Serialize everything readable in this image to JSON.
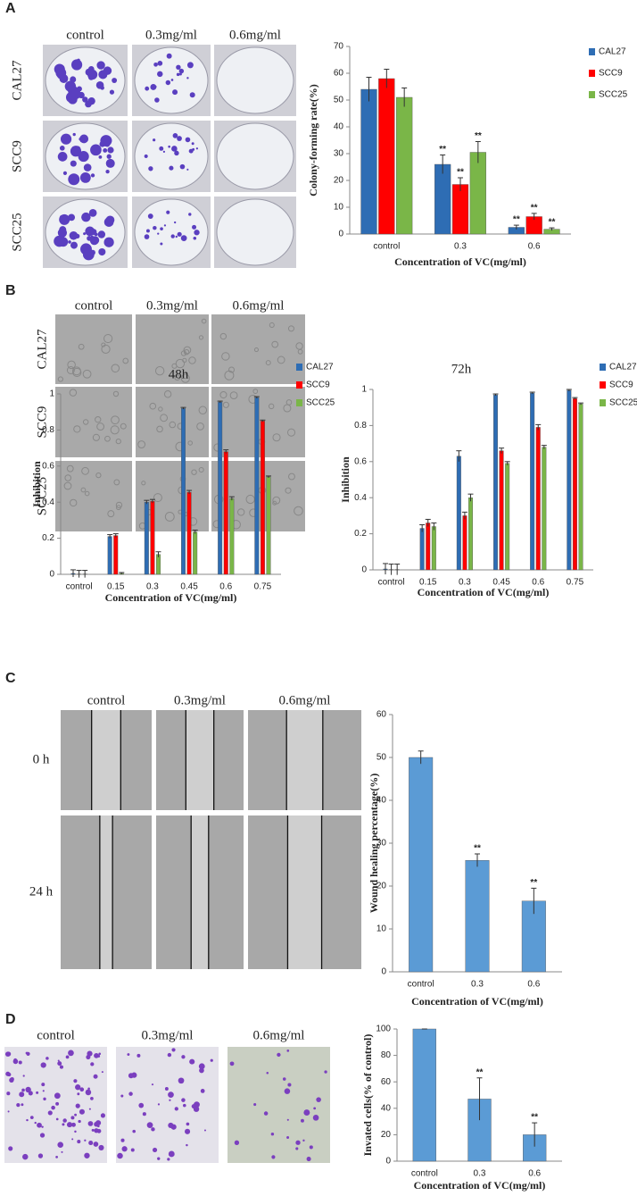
{
  "panels": [
    {
      "label": "A",
      "columns": [
        "control",
        "0.3mg/ml",
        "0.6mg/ml"
      ],
      "rows": [
        "CAL27",
        "SCC9",
        "SCC25"
      ]
    },
    {
      "label": "B",
      "columns": [
        "control",
        "0.3mg/ml",
        "0.6mg/ml"
      ],
      "rows": [
        "CAL27",
        "SCC9",
        "SCC25"
      ]
    },
    {
      "label": "C",
      "columns": [
        "control",
        "0.3mg/ml",
        "0.6mg/ml"
      ],
      "rows": [
        "0 h",
        "24 h"
      ]
    },
    {
      "label": "D",
      "columns": [
        "control",
        "0.3mg/ml",
        "0.6mg/ml"
      ]
    }
  ],
  "chart_data": [
    {
      "type": "bar",
      "y_label": "Colony-forming rate(%)",
      "x_label": "Concentration of VC(mg/ml)",
      "categories": [
        "control",
        "0.3",
        "0.6"
      ],
      "series": [
        {
          "name": "CAL27",
          "color": "#2e6db4",
          "values": [
            54,
            26,
            2.5
          ],
          "errors": [
            4.5,
            3.5,
            0.8
          ],
          "significance": [
            null,
            "**",
            "**"
          ]
        },
        {
          "name": "SCC9",
          "color": "#ff0000",
          "values": [
            58,
            18.5,
            6.5
          ],
          "errors": [
            3.5,
            2.5,
            1.2
          ],
          "significance": [
            null,
            "**",
            "**"
          ]
        },
        {
          "name": "SCC25",
          "color": "#7ab648",
          "values": [
            51,
            30.5,
            1.8
          ],
          "errors": [
            3.5,
            4,
            0.5
          ],
          "significance": [
            null,
            "**",
            "**"
          ]
        }
      ],
      "ylim": [
        0,
        70
      ],
      "yticks": [
        0,
        10,
        20,
        30,
        40,
        50,
        60,
        70
      ],
      "legend": "right"
    },
    {
      "type": "bar",
      "title": "48h",
      "y_label": "Inhibition",
      "x_label": "Concentration of VC(mg/ml)",
      "categories": [
        "control",
        "0.15",
        "0.3",
        "0.45",
        "0.6",
        "0.75"
      ],
      "series": [
        {
          "name": "CAL27",
          "color": "#2e6db4",
          "values": [
            0.005,
            0.21,
            0.4,
            0.92,
            0.955,
            0.98
          ],
          "errors": [
            0.02,
            0.01,
            0.01,
            0.005,
            0.005,
            0.005
          ]
        },
        {
          "name": "SCC9",
          "color": "#ff0000",
          "values": [
            0.002,
            0.215,
            0.405,
            0.455,
            0.68,
            0.85
          ],
          "errors": [
            0.02,
            0.01,
            0.01,
            0.01,
            0.01,
            0.005
          ]
        },
        {
          "name": "SCC25",
          "color": "#7ab648",
          "values": [
            0.002,
            0.005,
            0.11,
            0.235,
            0.42,
            0.54
          ],
          "errors": [
            0.02,
            0.005,
            0.015,
            0.01,
            0.01,
            0.005
          ]
        }
      ],
      "ylim": [
        0,
        1
      ],
      "yticks": [
        0,
        0.2,
        0.4,
        0.6,
        0.8,
        1
      ],
      "legend": "right"
    },
    {
      "type": "bar",
      "title": "72h",
      "y_label": "Inhibition",
      "x_label": "Concentration of VC(mg/ml)",
      "categories": [
        "control",
        "0.15",
        "0.3",
        "0.45",
        "0.6",
        "0.75"
      ],
      "series": [
        {
          "name": "CAL27",
          "color": "#2e6db4",
          "values": [
            0.005,
            0.23,
            0.63,
            0.97,
            0.98,
            0.995
          ],
          "errors": [
            0.03,
            0.02,
            0.03,
            0.005,
            0.005,
            0.005
          ]
        },
        {
          "name": "SCC9",
          "color": "#ff0000",
          "values": [
            0.002,
            0.26,
            0.3,
            0.66,
            0.79,
            0.95
          ],
          "errors": [
            0.03,
            0.02,
            0.02,
            0.015,
            0.015,
            0.005
          ]
        },
        {
          "name": "SCC25",
          "color": "#7ab648",
          "values": [
            0.002,
            0.24,
            0.4,
            0.59,
            0.68,
            0.92
          ],
          "errors": [
            0.03,
            0.02,
            0.02,
            0.01,
            0.01,
            0.005
          ]
        }
      ],
      "ylim": [
        0,
        1
      ],
      "yticks": [
        0,
        0.2,
        0.4,
        0.6,
        0.8,
        1
      ],
      "legend": "right"
    },
    {
      "type": "bar",
      "y_label": "Wound healing percentage(%)",
      "x_label": "Concentration of VC(mg/ml)",
      "categories": [
        "control",
        "0.3",
        "0.6"
      ],
      "color": "#5b9bd5",
      "values": [
        50,
        26,
        16.5
      ],
      "errors": [
        1.5,
        1.5,
        3
      ],
      "significance": [
        null,
        "**",
        "**"
      ],
      "ylim": [
        0,
        60
      ],
      "yticks": [
        0,
        10,
        20,
        30,
        40,
        50,
        60
      ]
    },
    {
      "type": "bar",
      "y_label": "Invated cells(% of control)",
      "x_label": "Concentration of VC(mg/ml)",
      "categories": [
        "control",
        "0.3",
        "0.6"
      ],
      "color": "#5b9bd5",
      "values": [
        100,
        47,
        20
      ],
      "errors": [
        0,
        16,
        9
      ],
      "significance": [
        null,
        "**",
        "**"
      ],
      "ylim": [
        0,
        100
      ],
      "yticks": [
        0,
        20,
        40,
        60,
        80,
        100
      ]
    }
  ]
}
